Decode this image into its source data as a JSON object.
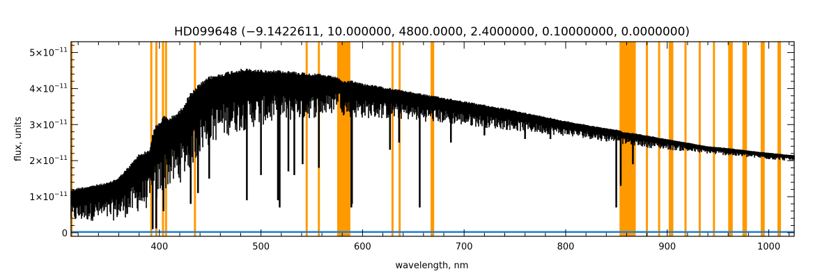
{
  "chart_data": {
    "type": "line",
    "title": "HD099648   (−9.1422611, 10.000000, 4800.0000, 2.4000000, 0.10000000, 0.0000000)",
    "xlabel": "wavelength, nm",
    "ylabel": "flux, units",
    "xlim": [
      313,
      1025
    ],
    "ylim": [
      -1e-12,
      5.3e-11
    ],
    "grid": false,
    "x_ticks": [
      400,
      500,
      600,
      700,
      800,
      900,
      1000
    ],
    "x_tick_labels": [
      "400",
      "500",
      "600",
      "700",
      "800",
      "900",
      "1000"
    ],
    "y_ticks": [
      0,
      1e-11,
      2e-11,
      3e-11,
      4e-11,
      5e-11
    ],
    "y_tick_labels": [
      {
        "mant": "0",
        "exp": ""
      },
      {
        "mant": "1×10",
        "exp": "−11"
      },
      {
        "mant": "2×10",
        "exp": "−11"
      },
      {
        "mant": "3×10",
        "exp": "−11"
      },
      {
        "mant": "4×10",
        "exp": "−11"
      },
      {
        "mant": "5×10",
        "exp": "−11"
      }
    ],
    "colors": {
      "spectrum": "#000000",
      "error": "#1f7fd0",
      "mask": "#ff9900",
      "axes": "#000000"
    },
    "series": [
      {
        "role": "flux",
        "envelope_x": [
          313,
          320,
          330,
          340,
          350,
          360,
          370,
          380,
          390,
          395,
          400,
          405,
          410,
          420,
          430,
          440,
          450,
          460,
          470,
          480,
          490,
          500,
          520,
          540,
          560,
          570,
          577,
          580,
          590,
          600,
          620,
          640,
          660,
          680,
          700,
          720,
          740,
          760,
          780,
          800,
          820,
          840,
          852,
          856,
          870,
          880,
          900,
          920,
          940,
          960,
          980,
          1000,
          1025
        ],
        "envelope_upper": [
          1.2e-11,
          1.25e-11,
          1.3e-11,
          1.35e-11,
          1.4e-11,
          1.55e-11,
          1.85e-11,
          2.2e-11,
          2.3e-11,
          2.9e-11,
          3.1e-11,
          3.25e-11,
          3.2e-11,
          3.4e-11,
          3.85e-11,
          4.15e-11,
          4.35e-11,
          4.42e-11,
          4.5e-11,
          4.55e-11,
          4.55e-11,
          4.52e-11,
          4.5e-11,
          4.45e-11,
          4.4e-11,
          4.35e-11,
          4.3e-11,
          4.2e-11,
          4.22e-11,
          4.15e-11,
          4.05e-11,
          3.95e-11,
          3.85e-11,
          3.75e-11,
          3.65e-11,
          3.55e-11,
          3.45e-11,
          3.33e-11,
          3.22e-11,
          3.1e-11,
          3e-11,
          2.9e-11,
          2.85e-11,
          2.8e-11,
          2.75e-11,
          2.7e-11,
          2.6e-11,
          2.5e-11,
          2.4e-11,
          2.35e-11,
          2.28e-11,
          2.22e-11,
          2.15e-11
        ],
        "envelope_lower": [
          1e-12,
          1.2e-12,
          1.5e-12,
          1.5e-12,
          1.2e-12,
          1.5e-12,
          2e-12,
          3e-12,
          4e-12,
          3e-12,
          6e-12,
          8e-12,
          9e-12,
          1e-11,
          1.4e-11,
          1.8e-11,
          2.1e-11,
          2.3e-11,
          2.4e-11,
          2.5e-11,
          2.6e-11,
          2.7e-11,
          2.8e-11,
          2.9e-11,
          3e-11,
          3.1e-11,
          3.5e-11,
          3.1e-11,
          3e-11,
          3e-11,
          3e-11,
          3e-11,
          2.95e-11,
          2.9e-11,
          2.85e-11,
          2.8e-11,
          2.75e-11,
          2.7e-11,
          2.65e-11,
          2.6e-11,
          2.55e-11,
          2.45e-11,
          2.5e-11,
          2.4e-11,
          2.35e-11,
          2.3e-11,
          2.25e-11,
          2.2e-11,
          2.15e-11,
          2.1e-11,
          2.05e-11,
          2e-11,
          1.95e-11
        ],
        "absorption_lines": [
          {
            "x": 393.4,
            "y": 1e-12
          },
          {
            "x": 396.8,
            "y": 1.2e-12
          },
          {
            "x": 404,
            "y": 6e-12
          },
          {
            "x": 430.8,
            "y": 8e-12
          },
          {
            "x": 438,
            "y": 1.1e-11
          },
          {
            "x": 449,
            "y": 1.5e-11
          },
          {
            "x": 486.1,
            "y": 9e-12
          },
          {
            "x": 500,
            "y": 1.6e-11
          },
          {
            "x": 516.7,
            "y": 9e-12
          },
          {
            "x": 518.4,
            "y": 7e-12
          },
          {
            "x": 527,
            "y": 1.7e-11
          },
          {
            "x": 532.8,
            "y": 1.6e-11
          },
          {
            "x": 541,
            "y": 1.9e-11
          },
          {
            "x": 557,
            "y": 1.8e-11
          },
          {
            "x": 589.0,
            "y": 7e-12
          },
          {
            "x": 589.6,
            "y": 8e-12
          },
          {
            "x": 627,
            "y": 2.3e-11
          },
          {
            "x": 636,
            "y": 2.5e-11
          },
          {
            "x": 656.3,
            "y": 7e-12
          },
          {
            "x": 687,
            "y": 2.5e-11
          },
          {
            "x": 720,
            "y": 2.7e-11
          },
          {
            "x": 760,
            "y": 2.6e-11
          },
          {
            "x": 785,
            "y": 2.6e-11
          },
          {
            "x": 849.8,
            "y": 7e-12
          },
          {
            "x": 854.2,
            "y": 1.3e-11
          },
          {
            "x": 866.2,
            "y": 1.9e-11
          }
        ]
      },
      {
        "role": "error",
        "x": [
          313,
          1025
        ],
        "y": [
          2e-13,
          2e-13
        ]
      }
    ],
    "mask_lines": [
      313.5,
      392,
      397,
      403.5,
      406.5,
      435,
      545,
      557,
      668,
      629.5,
      636.5,
      669.5,
      880,
      892,
      904,
      918,
      932,
      946,
      962,
      976,
      994,
      1010
    ],
    "mask_bands": [
      [
        575,
        588
      ],
      [
        853,
        869
      ],
      [
        901.5,
        906
      ],
      [
        960,
        964.5
      ],
      [
        974,
        978.5
      ],
      [
        992,
        996
      ],
      [
        1008.5,
        1012
      ]
    ]
  }
}
